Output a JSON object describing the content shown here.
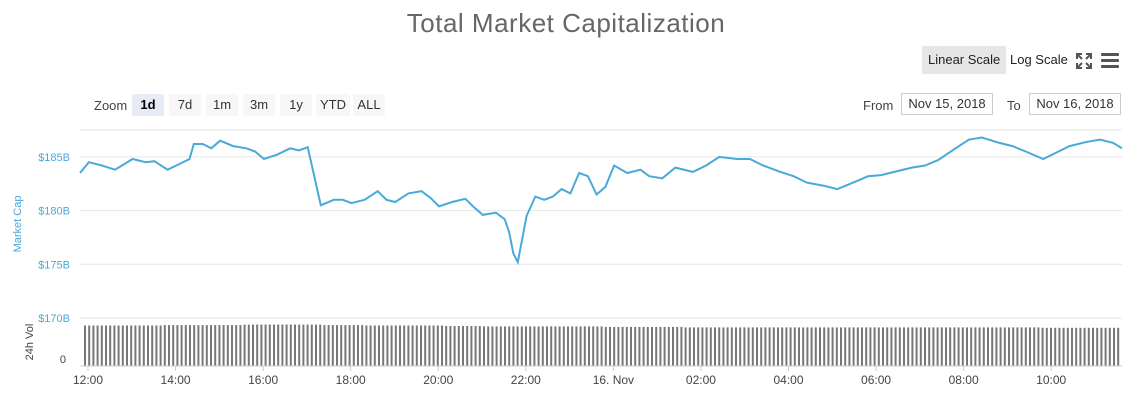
{
  "title": "Total Market Capitalization",
  "scale_buttons": {
    "linear": "Linear Scale",
    "log": "Log Scale"
  },
  "zoom": {
    "label": "Zoom",
    "options": [
      "1d",
      "7d",
      "1m",
      "3m",
      "1y",
      "YTD",
      "ALL"
    ],
    "selected": "1d"
  },
  "range": {
    "from_label": "From",
    "from_value": "Nov 15, 2018",
    "to_label": "To",
    "to_value": "Nov 16, 2018"
  },
  "icons": {
    "expand": "expand-icon",
    "menu": "hamburger-menu-icon"
  },
  "colors": {
    "line": "#4aa9d8",
    "volume": "#777777",
    "grid": "#e6e6e6"
  },
  "chart_data": {
    "type": "line",
    "title": "Total Market Capitalization",
    "ylabel": "Market Cap",
    "ylim": [
      170,
      187.5
    ],
    "y_ticks": [
      "$170B",
      "$175B",
      "$180B",
      "$185B"
    ],
    "x_ticks": [
      "12:00",
      "14:00",
      "16:00",
      "18:00",
      "20:00",
      "22:00",
      "16. Nov",
      "02:00",
      "04:00",
      "06:00",
      "08:00",
      "10:00"
    ],
    "x_range_hours": [
      12,
      35.8
    ],
    "series": [
      {
        "unit": "billion USD",
        "x": [
          12.0,
          12.2,
          12.5,
          12.8,
          13.0,
          13.2,
          13.5,
          13.7,
          14.0,
          14.2,
          14.5,
          14.6,
          14.8,
          15.0,
          15.2,
          15.5,
          15.8,
          16.0,
          16.2,
          16.5,
          16.8,
          17.0,
          17.2,
          17.5,
          17.8,
          18.0,
          18.2,
          18.5,
          18.8,
          19.0,
          19.2,
          19.5,
          19.8,
          20.0,
          20.2,
          20.5,
          20.8,
          21.0,
          21.2,
          21.5,
          21.7,
          21.8,
          21.9,
          22.0,
          22.2,
          22.4,
          22.6,
          22.8,
          23.0,
          23.2,
          23.4,
          23.6,
          23.8,
          24.0,
          24.2,
          24.5,
          24.8,
          25.0,
          25.3,
          25.6,
          26.0,
          26.3,
          26.6,
          27.0,
          27.3,
          27.6,
          28.0,
          28.3,
          28.6,
          29.0,
          29.3,
          29.6,
          30.0,
          30.3,
          30.6,
          31.0,
          31.3,
          31.6,
          32.0,
          32.3,
          32.6,
          33.0,
          33.3,
          33.6,
          34.0,
          34.3,
          34.6,
          35.0,
          35.3,
          35.6,
          35.8
        ],
        "y": [
          183.5,
          184.5,
          184.2,
          183.8,
          184.3,
          184.8,
          184.5,
          184.6,
          183.8,
          184.2,
          184.8,
          186.2,
          186.2,
          185.8,
          186.5,
          186.0,
          185.8,
          185.5,
          184.8,
          185.2,
          185.8,
          185.6,
          185.9,
          180.5,
          181.0,
          181.0,
          180.7,
          181.0,
          181.8,
          181.0,
          180.8,
          181.6,
          181.8,
          181.2,
          180.4,
          180.8,
          181.1,
          180.3,
          179.6,
          179.8,
          179.2,
          178.0,
          176.0,
          175.2,
          179.5,
          181.3,
          181.0,
          181.3,
          182.0,
          181.6,
          183.5,
          183.2,
          181.5,
          182.2,
          184.2,
          183.5,
          183.8,
          183.2,
          183.0,
          184.0,
          183.6,
          184.2,
          185.0,
          184.8,
          184.8,
          184.2,
          183.6,
          183.2,
          182.6,
          182.3,
          182.0,
          182.5,
          183.2,
          183.3,
          183.6,
          184.0,
          184.2,
          184.7,
          185.8,
          186.6,
          186.8,
          186.3,
          186.0,
          185.5,
          184.8,
          185.4,
          186.0,
          186.4,
          186.6,
          186.3,
          185.8
        ]
      },
      {
        "name": "24h Vol",
        "type": "bar",
        "relative_height": [
          0.88,
          0.88,
          0.89,
          0.89,
          0.9,
          0.9,
          0.89,
          0.88,
          0.88,
          0.87,
          0.86,
          0.86,
          0.86,
          0.85,
          0.85,
          0.84,
          0.84,
          0.84,
          0.84,
          0.84,
          0.84,
          0.84,
          0.84,
          0.84,
          0.83,
          0.83
        ]
      }
    ],
    "volume_axis": {
      "label": "24h Vol",
      "tick": "0"
    }
  }
}
